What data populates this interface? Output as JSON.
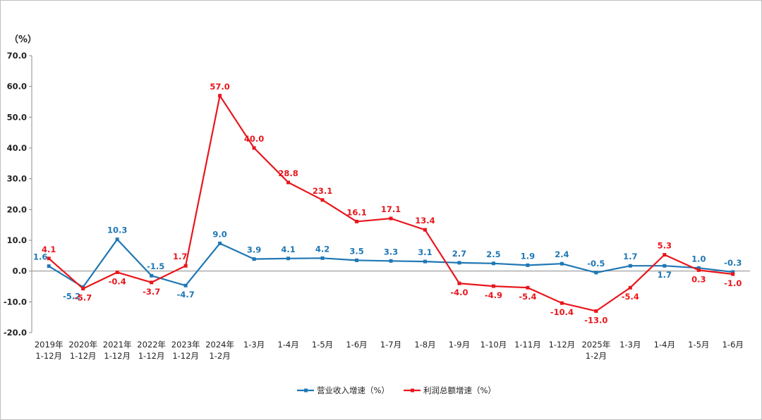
{
  "chart_data": {
    "type": "line",
    "yunit": "（%）",
    "ylim": [
      -20,
      70
    ],
    "yticks": [
      "70.0",
      "60.0",
      "50.0",
      "40.0",
      "30.0",
      "20.0",
      "10.0",
      "0.0",
      "-10.0",
      "-20.0"
    ],
    "ytick_values": [
      70,
      60,
      50,
      40,
      30,
      20,
      10,
      0,
      -10,
      -20
    ],
    "categories": [
      [
        "2019年",
        "1-12月"
      ],
      [
        "2020年",
        "1-12月"
      ],
      [
        "2021年",
        "1-12月"
      ],
      [
        "2022年",
        "1-12月"
      ],
      [
        "2023年",
        "1-12月"
      ],
      [
        "2024年",
        "1-2月"
      ],
      [
        "1-3月"
      ],
      [
        "1-4月"
      ],
      [
        "1-5月"
      ],
      [
        "1-6月"
      ],
      [
        "1-7月"
      ],
      [
        "1-8月"
      ],
      [
        "1-9月"
      ],
      [
        "1-10月"
      ],
      [
        "1-11月"
      ],
      [
        "1-12月"
      ],
      [
        "2025年",
        "1-2月"
      ],
      [
        "1-3月"
      ],
      [
        "1-4月"
      ],
      [
        "1-5月"
      ],
      [
        "1-6月"
      ]
    ],
    "series": [
      {
        "name": "营业收入增速（%）",
        "color": "#1F77B4",
        "values": [
          1.6,
          -5.2,
          10.3,
          -1.5,
          -4.7,
          9.0,
          3.9,
          4.1,
          4.2,
          3.5,
          3.3,
          3.1,
          2.7,
          2.5,
          1.9,
          2.4,
          -0.5,
          1.7,
          1.7,
          1.0,
          -0.3
        ],
        "labels": [
          "1.6",
          "-5.2",
          "10.3",
          "-1.5",
          "-4.7",
          "9.0",
          "3.9",
          "4.1",
          "4.2",
          "3.5",
          "3.3",
          "3.1",
          "2.7",
          "2.5",
          "1.9",
          "2.4",
          "-0.5",
          "1.7",
          "1.7",
          "1.0",
          "-0.3"
        ]
      },
      {
        "name": "利润总额增速（%）",
        "color": "#E8161C",
        "values": [
          4.1,
          -5.7,
          -0.4,
          -3.7,
          1.7,
          57.0,
          40.0,
          28.8,
          23.1,
          16.1,
          17.1,
          13.4,
          -4.0,
          -4.9,
          -5.4,
          -10.4,
          -13.0,
          -5.4,
          5.3,
          0.3,
          -1.0
        ],
        "labels": [
          "4.1",
          "-5.7",
          "-0.4",
          "-3.7",
          "1.7",
          "57.0",
          "40.0",
          "28.8",
          "23.1",
          "16.1",
          "17.1",
          "13.4",
          "-4.0",
          "-4.9",
          "-5.4",
          "-10.4",
          "-13.0",
          "-5.4",
          "5.3",
          "0.3",
          "-1.0"
        ]
      }
    ],
    "legend_position": "bottom-center"
  }
}
